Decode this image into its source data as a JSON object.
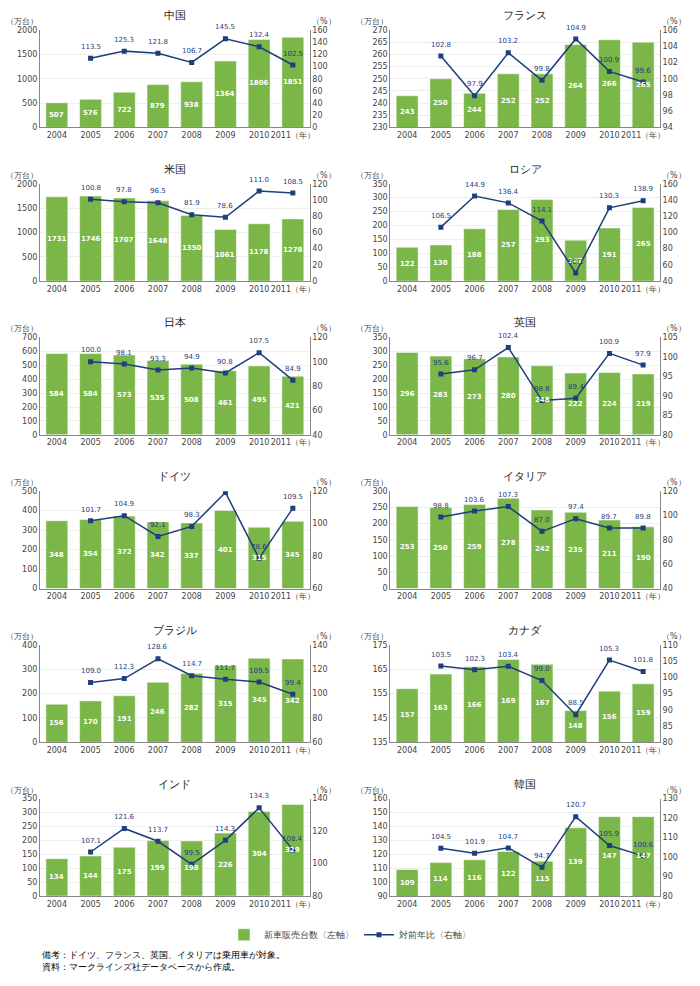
{
  "chart_data": [
    {
      "type": "bar",
      "title": "中国",
      "legend": "bottom",
      "categories": [
        "2004",
        "2005",
        "2006",
        "2007",
        "2008",
        "2009",
        "2010",
        "2011（年）"
      ],
      "ylabel": "（万台）",
      "y2label": "（%）",
      "series": [
        {
          "name": "新車販売台数〈左軸〉",
          "type": "bar",
          "color": "#7ab648",
          "values": [
            507,
            576,
            722,
            879,
            938,
            1364,
            1806,
            1851
          ]
        },
        {
          "name": "対前年比〈右軸〉",
          "type": "line",
          "axis": "y2",
          "color": "#1f3e7c",
          "marker": "square",
          "values": [
            null,
            113.5,
            125.3,
            121.8,
            106.7,
            145.5,
            132.4,
            102.5
          ]
        }
      ],
      "ylim": [
        0,
        2000
      ],
      "yticks": [
        0,
        500,
        1000,
        1500,
        2000
      ],
      "y2lim": [
        0,
        160
      ],
      "y2ticks": [
        0,
        20,
        40,
        60,
        80,
        100,
        120,
        140,
        160
      ],
      "grid": true,
      "data_labels": true
    },
    {
      "type": "bar",
      "title": "フランス",
      "categories": [
        "2004",
        "2005",
        "2006",
        "2007",
        "2008",
        "2009",
        "2010",
        "2011（年）"
      ],
      "ylabel": "（万台）",
      "y2label": "（%）",
      "series": [
        {
          "name": "新車販売台数〈左軸〉",
          "type": "bar",
          "color": "#7ab648",
          "values": [
            243,
            250,
            244,
            252,
            252,
            264,
            266,
            265
          ]
        },
        {
          "name": "対前年比〈右軸〉",
          "type": "line",
          "axis": "y2",
          "color": "#1f3e7c",
          "marker": "square",
          "values": [
            null,
            102.8,
            97.9,
            103.2,
            99.8,
            104.9,
            100.9,
            99.6
          ]
        }
      ],
      "ylim": [
        230,
        270
      ],
      "yticks": [
        230,
        235,
        240,
        245,
        250,
        255,
        260,
        265,
        270
      ],
      "y2lim": [
        94,
        106
      ],
      "y2ticks": [
        94,
        96,
        98,
        100,
        102,
        104,
        106
      ],
      "grid": true,
      "data_labels": true
    },
    {
      "type": "bar",
      "title": "米国",
      "categories": [
        "2004",
        "2005",
        "2006",
        "2007",
        "2008",
        "2009",
        "2010",
        "2011（年）"
      ],
      "ylabel": "（万台）",
      "y2label": "（%）",
      "series": [
        {
          "name": "新車販売台数〈左軸〉",
          "type": "bar",
          "color": "#7ab648",
          "values": [
            1731,
            1746,
            1707,
            1648,
            1350,
            1061,
            1178,
            1278
          ]
        },
        {
          "name": "対前年比〈右軸〉",
          "type": "line",
          "axis": "y2",
          "color": "#1f3e7c",
          "marker": "square",
          "values": [
            null,
            100.8,
            97.8,
            96.5,
            81.9,
            78.6,
            111.0,
            108.5
          ],
          "value_labels": [
            null,
            "100.8",
            "97.8",
            "96.5",
            "81.9",
            "78.6",
            "111.0",
            "108.5"
          ]
        }
      ],
      "ylim": [
        0,
        2000
      ],
      "yticks": [
        0,
        500,
        1000,
        1500,
        2000
      ],
      "y2lim": [
        0,
        120
      ],
      "y2ticks": [
        0,
        20,
        40,
        60,
        80,
        100,
        120
      ],
      "grid": true,
      "data_labels": true
    },
    {
      "type": "bar",
      "title": "ロシア",
      "categories": [
        "2004",
        "2005",
        "2006",
        "2007",
        "2008",
        "2009",
        "2010",
        "2011（年）"
      ],
      "ylabel": "（万台）",
      "y2label": "（%）",
      "series": [
        {
          "name": "新車販売台数〈左軸〉",
          "type": "bar",
          "color": "#7ab648",
          "values": [
            122,
            130,
            188,
            257,
            293,
            147,
            191,
            265
          ]
        },
        {
          "name": "対前年比〈右軸〉",
          "type": "line",
          "axis": "y2",
          "color": "#1f3e7c",
          "marker": "square",
          "values": [
            null,
            106.5,
            144.9,
            136.4,
            114.1,
            50.1,
            130.3,
            138.9
          ]
        }
      ],
      "ylim": [
        0,
        350
      ],
      "yticks": [
        0,
        50,
        100,
        150,
        200,
        250,
        300,
        350
      ],
      "y2lim": [
        40,
        160
      ],
      "y2ticks": [
        40,
        60,
        80,
        100,
        120,
        140,
        160
      ],
      "grid": true,
      "data_labels": true
    },
    {
      "type": "bar",
      "title": "日本",
      "categories": [
        "2004",
        "2005",
        "2006",
        "2007",
        "2008",
        "2009",
        "2010",
        "2011（年）"
      ],
      "ylabel": "（万台）",
      "y2label": "（%）",
      "series": [
        {
          "name": "新車販売台数〈左軸〉",
          "type": "bar",
          "color": "#7ab648",
          "values": [
            584,
            584,
            573,
            535,
            508,
            461,
            495,
            421
          ]
        },
        {
          "name": "対前年比〈右軸〉",
          "type": "line",
          "axis": "y2",
          "color": "#1f3e7c",
          "marker": "square",
          "values": [
            null,
            100.0,
            98.1,
            93.3,
            94.9,
            90.8,
            107.5,
            84.9
          ],
          "value_labels": [
            null,
            "100.0",
            "98.1",
            "93.3",
            "94.9",
            "90.8",
            "107.5",
            "84.9"
          ]
        }
      ],
      "ylim": [
        0,
        700
      ],
      "yticks": [
        0,
        100,
        200,
        300,
        400,
        500,
        600,
        700
      ],
      "y2lim": [
        40,
        120
      ],
      "y2ticks": [
        40,
        60,
        80,
        100,
        120
      ],
      "grid": true,
      "data_labels": true
    },
    {
      "type": "bar",
      "title": "英国",
      "categories": [
        "2004",
        "2005",
        "2006",
        "2007",
        "2008",
        "2009",
        "2010",
        "2011（年）"
      ],
      "ylabel": "（万台）",
      "y2label": "（%）",
      "series": [
        {
          "name": "新車販売台数〈左軸〉",
          "type": "bar",
          "color": "#7ab648",
          "values": [
            296,
            283,
            273,
            280,
            248,
            222,
            224,
            219
          ]
        },
        {
          "name": "対前年比〈右軸〉",
          "type": "line",
          "axis": "y2",
          "color": "#1f3e7c",
          "marker": "square",
          "values": [
            null,
            95.6,
            96.7,
            102.4,
            88.8,
            89.4,
            100.9,
            97.9
          ]
        }
      ],
      "ylim": [
        0,
        350
      ],
      "yticks": [
        0,
        50,
        100,
        150,
        200,
        250,
        300,
        350
      ],
      "y2lim": [
        80,
        105
      ],
      "y2ticks": [
        80,
        85,
        90,
        95,
        100,
        105
      ],
      "grid": true,
      "data_labels": true
    },
    {
      "type": "bar",
      "title": "ドイツ",
      "categories": [
        "2004",
        "2005",
        "2006",
        "2007",
        "2008",
        "2009",
        "2010",
        "2011（年）"
      ],
      "ylabel": "（万台）",
      "y2label": "（%）",
      "series": [
        {
          "name": "新車販売台数〈左軸〉",
          "type": "bar",
          "color": "#7ab648",
          "values": [
            348,
            354,
            372,
            342,
            337,
            401,
            315,
            345
          ]
        },
        {
          "name": "対前年比〈右軸〉",
          "type": "line",
          "axis": "y2",
          "color": "#1f3e7c",
          "marker": "square",
          "values": [
            null,
            101.7,
            104.9,
            92.1,
            98.3,
            119.2,
            78.6,
            109.5
          ]
        }
      ],
      "ylim": [
        0,
        500
      ],
      "yticks": [
        0,
        100,
        200,
        300,
        400,
        500
      ],
      "y2lim": [
        60,
        120
      ],
      "y2ticks": [
        60,
        80,
        100,
        120
      ],
      "grid": true,
      "data_labels": true
    },
    {
      "type": "bar",
      "title": "イタリア",
      "categories": [
        "2004",
        "2005",
        "2006",
        "2007",
        "2008",
        "2009",
        "2010",
        "2011（年）"
      ],
      "ylabel": "（万台）",
      "y2label": "（%）",
      "series": [
        {
          "name": "新車販売台数〈左軸〉",
          "type": "bar",
          "color": "#7ab648",
          "values": [
            253,
            250,
            259,
            278,
            242,
            235,
            211,
            190
          ]
        },
        {
          "name": "対前年比〈右軸〉",
          "type": "line",
          "axis": "y2",
          "color": "#1f3e7c",
          "marker": "square",
          "values": [
            null,
            98.8,
            103.6,
            107.3,
            87.0,
            97.4,
            89.7,
            89.8
          ],
          "value_labels": [
            null,
            "98.8",
            "103.6",
            "107.3",
            "87.0",
            "97.4",
            "89.7",
            "89.8"
          ]
        }
      ],
      "ylim": [
        0,
        300
      ],
      "yticks": [
        0,
        50,
        100,
        150,
        200,
        250,
        300
      ],
      "y2lim": [
        40,
        120
      ],
      "y2ticks": [
        40,
        60,
        80,
        100,
        120
      ],
      "grid": true,
      "data_labels": true
    },
    {
      "type": "bar",
      "title": "ブラジル",
      "categories": [
        "2004",
        "2005",
        "2006",
        "2007",
        "2008",
        "2009",
        "2010",
        "2011（年）"
      ],
      "ylabel": "（万台）",
      "y2label": "（%）",
      "series": [
        {
          "name": "新車販売台数〈左軸〉",
          "type": "bar",
          "color": "#7ab648",
          "values": [
            156,
            170,
            191,
            246,
            282,
            315,
            345,
            342
          ]
        },
        {
          "name": "対前年比〈右軸〉",
          "type": "line",
          "axis": "y2",
          "color": "#1f3e7c",
          "marker": "square",
          "values": [
            null,
            109.0,
            112.3,
            128.6,
            114.7,
            111.7,
            109.5,
            99.4
          ],
          "value_labels": [
            null,
            "109.0",
            "112.3",
            "128.6",
            "114.7",
            "111.7",
            "109.5",
            "99.4"
          ]
        }
      ],
      "ylim": [
        0,
        400
      ],
      "yticks": [
        0,
        100,
        200,
        300,
        400
      ],
      "y2lim": [
        60,
        140
      ],
      "y2ticks": [
        60,
        80,
        100,
        120,
        140
      ],
      "grid": true,
      "data_labels": true
    },
    {
      "type": "bar",
      "title": "カナダ",
      "categories": [
        "2004",
        "2005",
        "2006",
        "2007",
        "2008",
        "2009",
        "2010",
        "2011（年）"
      ],
      "ylabel": "（万台）",
      "y2label": "（%）",
      "series": [
        {
          "name": "新車販売台数〈左軸〉",
          "type": "bar",
          "color": "#7ab648",
          "values": [
            157,
            163,
            166,
            169,
            167,
            148,
            156,
            159
          ]
        },
        {
          "name": "対前年比〈右軸〉",
          "type": "line",
          "axis": "y2",
          "color": "#1f3e7c",
          "marker": "square",
          "values": [
            null,
            103.5,
            102.3,
            103.4,
            99.0,
            88.5,
            105.3,
            101.8
          ],
          "value_labels": [
            null,
            "103.5",
            "102.3",
            "103.4",
            "99.0",
            "88.5",
            "105.3",
            "101.8"
          ]
        }
      ],
      "ylim": [
        135,
        175
      ],
      "yticks": [
        135,
        145,
        155,
        165,
        175
      ],
      "y2lim": [
        80,
        110
      ],
      "y2ticks": [
        80,
        85,
        90,
        95,
        100,
        105,
        110
      ],
      "grid": true,
      "data_labels": true
    },
    {
      "type": "bar",
      "title": "インド",
      "categories": [
        "2004",
        "2005",
        "2006",
        "2007",
        "2008",
        "2009",
        "2010",
        "2011（年）"
      ],
      "ylabel": "（万台）",
      "y2label": "（%）",
      "series": [
        {
          "name": "新車販売台数〈左軸〉",
          "type": "bar",
          "color": "#7ab648",
          "values": [
            134,
            144,
            175,
            199,
            198,
            226,
            304,
            329
          ]
        },
        {
          "name": "対前年比〈右軸〉",
          "type": "line",
          "axis": "y2",
          "color": "#1f3e7c",
          "marker": "square",
          "values": [
            null,
            107.1,
            121.6,
            113.7,
            99.5,
            114.3,
            134.3,
            108.4
          ]
        }
      ],
      "ylim": [
        0,
        350
      ],
      "yticks": [
        0,
        50,
        100,
        150,
        200,
        250,
        300,
        350
      ],
      "y2lim": [
        80,
        140
      ],
      "y2ticks": [
        80,
        100,
        120,
        140
      ],
      "grid": true,
      "data_labels": true
    },
    {
      "type": "bar",
      "title": "韓国",
      "categories": [
        "2004",
        "2005",
        "2006",
        "2007",
        "2008",
        "2009",
        "2010",
        "2011（年）"
      ],
      "ylabel": "（万台）",
      "y2label": "（%）",
      "series": [
        {
          "name": "新車販売台数〈左軸〉",
          "type": "bar",
          "color": "#7ab648",
          "values": [
            109,
            114,
            116,
            122,
            115,
            139,
            147,
            147
          ]
        },
        {
          "name": "対前年比〈右軸〉",
          "type": "line",
          "axis": "y2",
          "color": "#1f3e7c",
          "marker": "square",
          "values": [
            null,
            104.5,
            101.9,
            104.7,
            94.7,
            120.7,
            105.9,
            100.6
          ]
        }
      ],
      "ylim": [
        90,
        160
      ],
      "yticks": [
        90,
        100,
        110,
        120,
        130,
        140,
        150,
        160
      ],
      "y2lim": [
        80,
        130
      ],
      "y2ticks": [
        80,
        90,
        100,
        110,
        120,
        130
      ],
      "grid": true,
      "data_labels": true
    }
  ],
  "footer": [
    "備考：ドイツ、フランス、英国、イタリアは乗用車が対象。",
    "資料：マークラインズ社データベースから作成。"
  ]
}
